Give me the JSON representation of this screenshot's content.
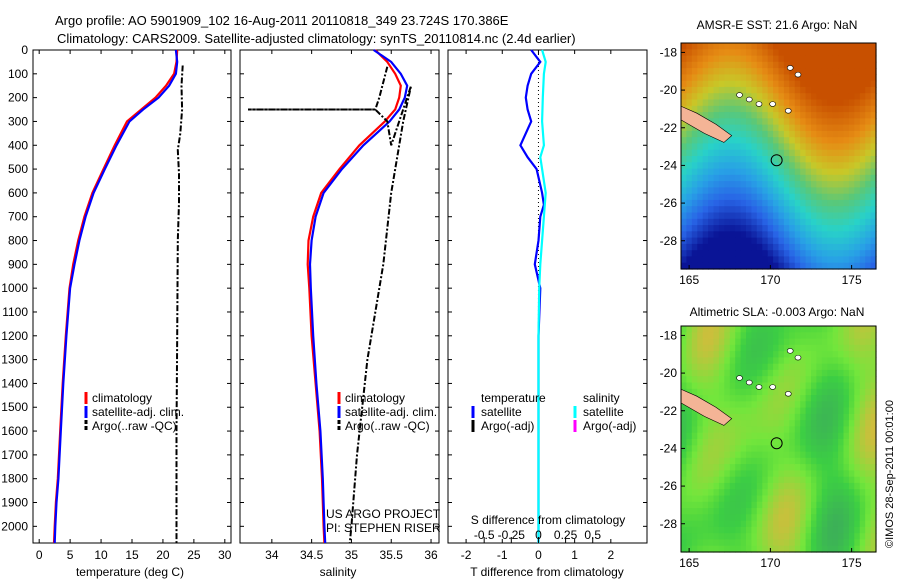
{
  "header": {
    "line1": "Argo profile: AO 5901909_102 16-Aug-2011 20110818_349 23.724S 170.386E",
    "line2": "Climatology: CARS2009. Satellite-adjusted climatology: synTS_20110814.nc (2.4d earlier)"
  },
  "colors": {
    "climatology": "#ff0000",
    "satellite": "#0000ff",
    "argo": "#000000",
    "salinity_satellite": "#00ffff",
    "salinity_argo": "#ff00ff"
  },
  "chart_data": [
    {
      "type": "line",
      "name": "temperature-profile",
      "xlabel": "temperature (deg C)",
      "xlim": [
        -1,
        31
      ],
      "xticks": [
        0,
        5,
        10,
        15,
        20,
        25,
        30
      ],
      "ylim": [
        0,
        2070
      ],
      "yticks": [
        0,
        100,
        200,
        300,
        400,
        500,
        600,
        700,
        800,
        900,
        1000,
        1100,
        1200,
        1300,
        1400,
        1500,
        1600,
        1700,
        1800,
        1900,
        2000
      ],
      "y_reversed": true,
      "legend": [
        "climatology",
        "satellite-adj. clim.",
        "Argo(..raw -QC)"
      ],
      "legend_position": "lower-left",
      "series": [
        {
          "name": "climatology",
          "style": "solid",
          "points": [
            [
              22.3,
              0
            ],
            [
              22.2,
              50
            ],
            [
              21.8,
              100
            ],
            [
              20.5,
              150
            ],
            [
              18.8,
              200
            ],
            [
              16.5,
              250
            ],
            [
              14.2,
              300
            ],
            [
              12.2,
              400
            ],
            [
              10.4,
              500
            ],
            [
              8.6,
              600
            ],
            [
              7.3,
              700
            ],
            [
              6.3,
              800
            ],
            [
              5.5,
              900
            ],
            [
              4.9,
              1000
            ],
            [
              4.3,
              1200
            ],
            [
              3.8,
              1400
            ],
            [
              3.4,
              1600
            ],
            [
              3.0,
              1800
            ],
            [
              2.7,
              1900
            ],
            [
              2.5,
              2000
            ],
            [
              2.4,
              2070
            ]
          ]
        },
        {
          "name": "satellite-adj. clim.",
          "style": "solid",
          "points": [
            [
              22.1,
              0
            ],
            [
              22.3,
              50
            ],
            [
              22.1,
              100
            ],
            [
              21.0,
              150
            ],
            [
              19.3,
              200
            ],
            [
              16.8,
              250
            ],
            [
              14.6,
              300
            ],
            [
              12.5,
              400
            ],
            [
              10.6,
              500
            ],
            [
              8.8,
              600
            ],
            [
              7.5,
              700
            ],
            [
              6.5,
              800
            ],
            [
              5.7,
              900
            ],
            [
              5.0,
              1000
            ],
            [
              4.4,
              1200
            ],
            [
              3.9,
              1400
            ],
            [
              3.5,
              1600
            ],
            [
              3.1,
              1800
            ],
            [
              2.8,
              1900
            ],
            [
              2.6,
              2000
            ],
            [
              2.5,
              2070
            ]
          ]
        },
        {
          "name": "Argo(..raw -QC)",
          "style": "dashdot",
          "points": [
            [
              23.2,
              65
            ],
            [
              23.0,
              150
            ],
            [
              23.1,
              250
            ],
            [
              22.8,
              350
            ],
            [
              22.4,
              420
            ],
            [
              22.6,
              520
            ],
            [
              22.6,
              640
            ],
            [
              22.4,
              800
            ],
            [
              22.3,
              1200
            ],
            [
              22.2,
              1600
            ],
            [
              22.2,
              2070
            ]
          ]
        }
      ]
    },
    {
      "type": "line",
      "name": "salinity-profile",
      "xlabel": "salinity",
      "xlim": [
        33.6,
        36.1
      ],
      "xticks": [
        34,
        34.5,
        35,
        35.5,
        36
      ],
      "ylim": [
        0,
        2070
      ],
      "y_reversed": true,
      "legend": [
        "climatology",
        "satellite-adj. clim.",
        "Argo(..raw -QC)"
      ],
      "legend_position": "lower-right",
      "annotations": [
        "US ARGO PROJECT",
        "PI: STEPHEN RISER"
      ],
      "series": [
        {
          "name": "climatology",
          "style": "solid",
          "points": [
            [
              35.3,
              0
            ],
            [
              35.45,
              50
            ],
            [
              35.55,
              100
            ],
            [
              35.62,
              150
            ],
            [
              35.6,
              200
            ],
            [
              35.55,
              250
            ],
            [
              35.42,
              300
            ],
            [
              35.1,
              400
            ],
            [
              34.85,
              500
            ],
            [
              34.62,
              600
            ],
            [
              34.52,
              700
            ],
            [
              34.46,
              800
            ],
            [
              34.45,
              900
            ],
            [
              34.47,
              1000
            ],
            [
              34.5,
              1200
            ],
            [
              34.55,
              1400
            ],
            [
              34.6,
              1600
            ],
            [
              34.63,
              1800
            ],
            [
              34.65,
              2000
            ],
            [
              34.66,
              2070
            ]
          ]
        },
        {
          "name": "satellite-adj. clim.",
          "style": "solid",
          "points": [
            [
              35.28,
              0
            ],
            [
              35.5,
              50
            ],
            [
              35.62,
              100
            ],
            [
              35.7,
              150
            ],
            [
              35.67,
              200
            ],
            [
              35.6,
              250
            ],
            [
              35.48,
              300
            ],
            [
              35.15,
              400
            ],
            [
              34.88,
              500
            ],
            [
              34.65,
              600
            ],
            [
              34.55,
              700
            ],
            [
              34.5,
              800
            ],
            [
              34.48,
              900
            ],
            [
              34.49,
              1000
            ],
            [
              34.52,
              1200
            ],
            [
              34.56,
              1400
            ],
            [
              34.61,
              1600
            ],
            [
              34.64,
              1800
            ],
            [
              34.66,
              2000
            ],
            [
              34.67,
              2070
            ]
          ]
        },
        {
          "name": "Argo(..raw -QC)",
          "style": "dashdot",
          "points": [
            [
              35.45,
              70
            ],
            [
              35.35,
              200
            ],
            [
              35.3,
              250
            ],
            [
              33.7,
              250
            ],
            [
              35.3,
              250
            ],
            [
              35.45,
              300
            ],
            [
              35.5,
              400
            ],
            [
              35.75,
              150
            ],
            [
              35.65,
              300
            ],
            [
              35.6,
              400
            ],
            [
              35.5,
              600
            ],
            [
              35.4,
              900
            ],
            [
              35.2,
              1300
            ],
            [
              35.07,
              1700
            ],
            [
              35.0,
              2000
            ],
            [
              34.98,
              2070
            ]
          ]
        }
      ]
    },
    {
      "type": "line",
      "name": "difference-profile",
      "xlabel": "T difference from climatology",
      "xlabel_top": "S difference from climatology",
      "xlim": [
        -2.5,
        3
      ],
      "xticks": [
        -2,
        -1,
        0,
        1,
        2
      ],
      "top_ticks": [
        "-0.5",
        "-0.25",
        "0",
        "0.25",
        "0.5"
      ],
      "ylim": [
        0,
        2070
      ],
      "y_reversed": true,
      "legend": [
        "temperature",
        "satellite",
        "Argo(-adj)",
        "salinity",
        "satellite",
        "Argo(-adj)"
      ],
      "series": [
        {
          "name": "temperature satellite",
          "style": "solid",
          "points": [
            [
              -0.2,
              0
            ],
            [
              0.05,
              50
            ],
            [
              -0.2,
              100
            ],
            [
              -0.3,
              150
            ],
            [
              -0.35,
              200
            ],
            [
              -0.3,
              250
            ],
            [
              -0.2,
              300
            ],
            [
              -0.5,
              400
            ],
            [
              -0.3,
              450
            ],
            [
              -0.05,
              500
            ],
            [
              0.1,
              600
            ],
            [
              0.15,
              650
            ],
            [
              0.05,
              700
            ],
            [
              0.0,
              800
            ],
            [
              -0.1,
              900
            ],
            [
              0.05,
              1000
            ],
            [
              0.0,
              1200
            ],
            [
              0.0,
              2070
            ]
          ]
        },
        {
          "name": "salinity satellite",
          "style": "solid",
          "points": [
            [
              0.1,
              0
            ],
            [
              0.2,
              50
            ],
            [
              0.15,
              100
            ],
            [
              0.12,
              200
            ],
            [
              0.1,
              300
            ],
            [
              0.15,
              400
            ],
            [
              0.05,
              450
            ],
            [
              0.1,
              500
            ],
            [
              0.2,
              600
            ],
            [
              0.15,
              700
            ],
            [
              0.1,
              800
            ],
            [
              0.05,
              900
            ],
            [
              0.02,
              1000
            ],
            [
              0.0,
              1200
            ],
            [
              0.0,
              2070
            ]
          ]
        }
      ]
    },
    {
      "type": "heatmap",
      "name": "amsr-e-sst-map",
      "title": "AMSR-E SST: 21.6 Argo: NaN",
      "xlim": [
        164.5,
        176.5
      ],
      "ylim": [
        -29.5,
        -17.5
      ],
      "xticks": [
        165,
        170,
        175
      ],
      "yticks": [
        -18,
        -20,
        -22,
        -24,
        -26,
        -28
      ]
    },
    {
      "type": "heatmap",
      "name": "altimetric-sla-map",
      "title": "Altimetric SLA: -0.003 Argo: NaN",
      "xlim": [
        164.5,
        176.5
      ],
      "ylim": [
        -29.5,
        -17.5
      ],
      "xticks": [
        165,
        170,
        175
      ],
      "yticks": [
        -18,
        -20,
        -22,
        -24,
        -26,
        -28
      ]
    }
  ],
  "legends": {
    "profile": [
      "climatology",
      "satellite-adj. clim.",
      "Argo(..raw -QC)"
    ],
    "diff_temperature": [
      "temperature",
      "satellite",
      "Argo(-adj)"
    ],
    "diff_salinity": [
      "salinity",
      "satellite",
      "Argo(-adj)"
    ]
  },
  "credits": {
    "pi_line1": "US ARGO PROJECT",
    "pi_line2": "PI: STEPHEN RISER",
    "side_stamp": "©IMOS 28-Sep-2011 00:01:00"
  }
}
